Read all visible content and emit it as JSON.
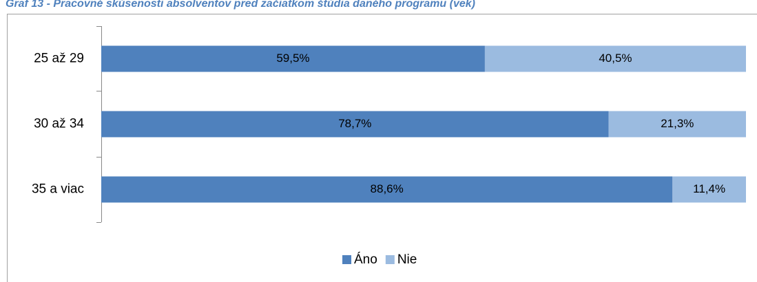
{
  "chart_data": {
    "type": "bar",
    "orientation": "horizontal",
    "stacked": true,
    "title": "Graf 13 - Pracovné skúsenosti absolventov pred začiatkom štúdia daného programu (vek)",
    "categories": [
      "25 až 29",
      "30 až 34",
      "35 a viac"
    ],
    "series": [
      {
        "name": "Áno",
        "color": "#4f81bd",
        "values": [
          59.5,
          78.7,
          88.6
        ],
        "value_labels": [
          "59,5%",
          "78,7%",
          "88,6%"
        ]
      },
      {
        "name": "Nie",
        "color": "#9bbbe0",
        "values": [
          40.5,
          21.3,
          11.4
        ],
        "value_labels": [
          "40,5%",
          "21,3%",
          "11,4%"
        ]
      }
    ],
    "xlim": [
      0,
      100
    ],
    "legend": "bottom"
  }
}
